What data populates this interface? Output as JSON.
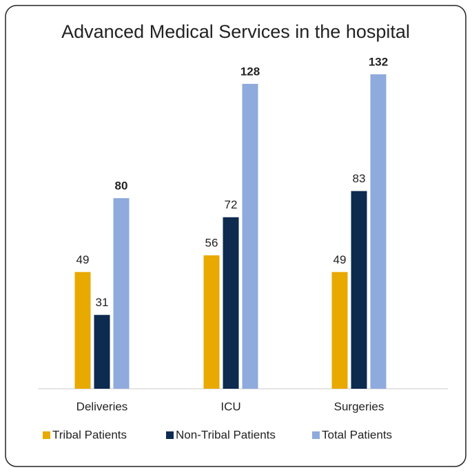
{
  "chart_data": {
    "type": "bar",
    "title": "Advanced Medical Services in the hospital",
    "categories": [
      "Deliveries",
      "ICU",
      "Surgeries"
    ],
    "series": [
      {
        "name": "Tribal Patients",
        "color": "#e8a900",
        "values": [
          49,
          56,
          49
        ]
      },
      {
        "name": "Non-Tribal Patients",
        "color": "#0d2a4f",
        "values": [
          31,
          72,
          83
        ]
      },
      {
        "name": "Total Patients",
        "color": "#8faadc",
        "values": [
          80,
          128,
          132
        ]
      }
    ],
    "legend": "bottom"
  }
}
